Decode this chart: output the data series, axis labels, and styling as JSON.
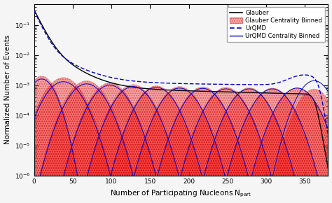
{
  "title": "",
  "xlabel": "Number of Participating Nucleons N$_\\mathrm{part}$",
  "ylabel": "Normalized Number of Events",
  "xlim": [
    0,
    380
  ],
  "x_max": 380,
  "background_color": "#f5f5f5",
  "glauber_color": "#000000",
  "urqmd_color": "#0000cc",
  "fill_color": "#ff2222",
  "fill_alpha": 0.38,
  "legend_labels": [
    "Glauber",
    "Glauber Centrality Binned",
    "UrQMD",
    "UrQMD Centrality Binned"
  ],
  "bin_centers": [
    10,
    38,
    68,
    98,
    128,
    158,
    188,
    218,
    248,
    278,
    308,
    340,
    362
  ],
  "bin_widths": [
    12,
    16,
    16,
    16,
    16,
    16,
    16,
    16,
    16,
    16,
    16,
    16,
    14
  ],
  "glauber_heights": [
    0.002,
    0.0018,
    0.0014,
    0.0012,
    0.00105,
    0.00095,
    0.0009,
    0.00088,
    0.00085,
    0.00082,
    0.0008,
    0.0008,
    0.00075
  ],
  "urqmd_heights": [
    0.0016,
    0.0013,
    0.0011,
    0.001,
    0.0009,
    0.00085,
    0.0008,
    0.00078,
    0.00075,
    0.00075,
    0.00075,
    0.0008,
    0.0014
  ]
}
